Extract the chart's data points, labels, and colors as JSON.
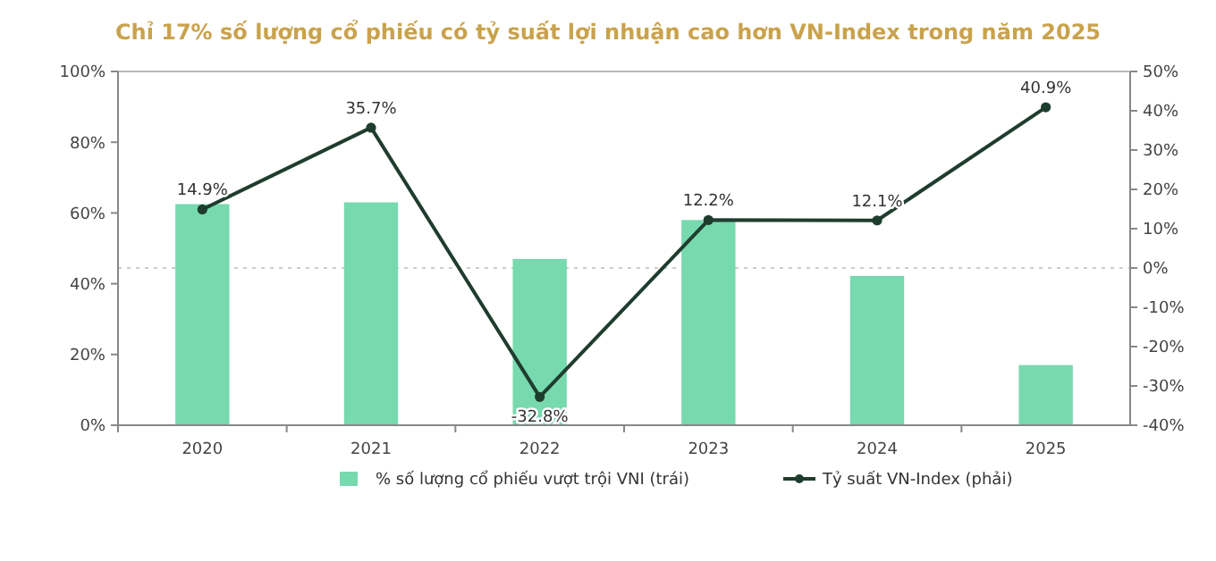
{
  "chart_data": {
    "type": "bar",
    "title": "Chỉ 17% số lượng cổ phiếu có tỷ suất lợi nhuận cao hơn VN-Index trong năm 2025",
    "categories": [
      "2020",
      "2021",
      "2022",
      "2023",
      "2024",
      "2025"
    ],
    "series": [
      {
        "name": "% số lượng cổ phiếu vượt trội VNI (trái)",
        "color": "#77d9ae",
        "values": [
          62.5,
          63,
          47,
          58,
          42.2,
          17
        ]
      },
      {
        "name": "Tỷ suất VN-Index (phải)",
        "type": "line",
        "axis": "y2",
        "color": "#1f3d2e",
        "marker": "circle",
        "values": [
          14.9,
          35.7,
          -32.8,
          12.2,
          12.1,
          40.9
        ],
        "value_labels": [
          "14.9%",
          "35.7%",
          "-32.8%",
          "12.2%",
          "12.1%",
          "40.9%"
        ]
      }
    ],
    "ylim": [
      0,
      100
    ],
    "yticks": [
      {
        "value": 0,
        "label": "0%"
      },
      {
        "value": 20,
        "label": "20%"
      },
      {
        "value": 40,
        "label": "40%"
      },
      {
        "value": 60,
        "label": "60%"
      },
      {
        "value": 80,
        "label": "80%"
      },
      {
        "value": 100,
        "label": "100%"
      }
    ],
    "y2lim": [
      -40,
      50
    ],
    "y2ticks": [
      {
        "value": -40,
        "label": "-40%"
      },
      {
        "value": -30,
        "label": "-30%"
      },
      {
        "value": -20,
        "label": "-20%"
      },
      {
        "value": -10,
        "label": "-10%"
      },
      {
        "value": 0,
        "label": "0%"
      },
      {
        "value": 10,
        "label": "10%"
      },
      {
        "value": 20,
        "label": "20%"
      },
      {
        "value": 30,
        "label": "30%"
      },
      {
        "value": 40,
        "label": "40%"
      },
      {
        "value": 50,
        "label": "50%"
      }
    ],
    "ref_lines": [
      {
        "axis": "y2",
        "value": 0,
        "color": "#cccccc",
        "line_style": "dotted"
      }
    ],
    "grid": false,
    "legend": "bottom"
  }
}
